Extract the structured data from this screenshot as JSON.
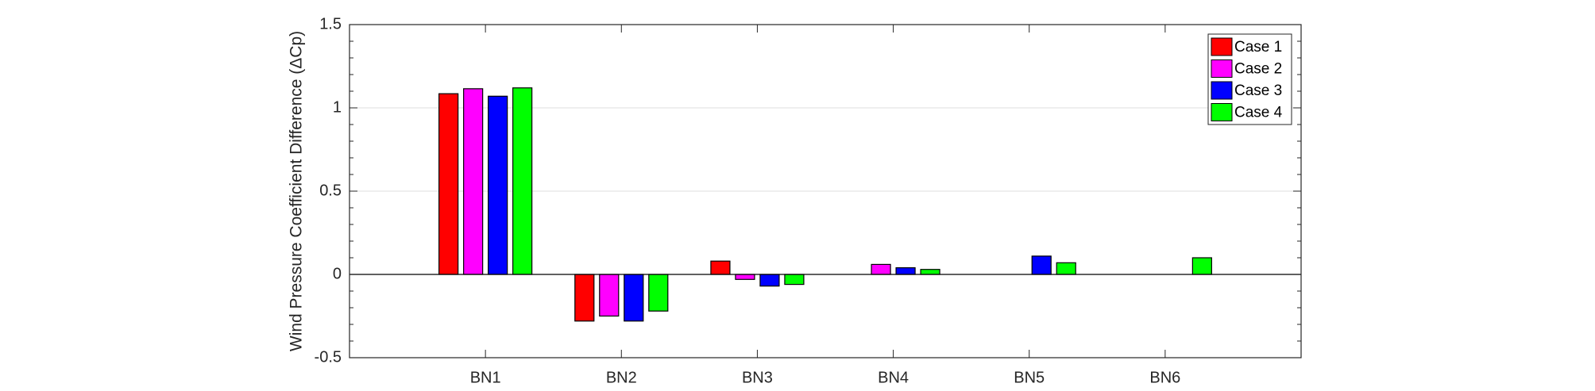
{
  "chart_data": {
    "type": "bar",
    "y_label": "Wind Pressure Coefficient Difference (ΔCp)",
    "categories": [
      "BN1",
      "BN2",
      "BN3",
      "BN4",
      "BN5",
      "BN6"
    ],
    "series": [
      {
        "name": "Case 1",
        "color": "#ff0000",
        "values": [
          1.085,
          -0.28,
          0.08,
          0,
          0,
          0
        ]
      },
      {
        "name": "Case 2",
        "color": "#ff00ff",
        "values": [
          1.115,
          -0.25,
          -0.03,
          0.06,
          0,
          0
        ]
      },
      {
        "name": "Case 3",
        "color": "#0000ff",
        "values": [
          1.07,
          -0.28,
          -0.07,
          0.04,
          0.11,
          0
        ]
      },
      {
        "name": "Case 4",
        "color": "#00ff00",
        "values": [
          1.12,
          -0.22,
          -0.06,
          0.03,
          0.07,
          0.1
        ]
      }
    ],
    "ylim": [
      -0.5,
      1.5
    ],
    "yticks": [
      -0.5,
      0,
      0.5,
      1,
      1.5
    ],
    "grid": true,
    "legend": "upper right"
  }
}
